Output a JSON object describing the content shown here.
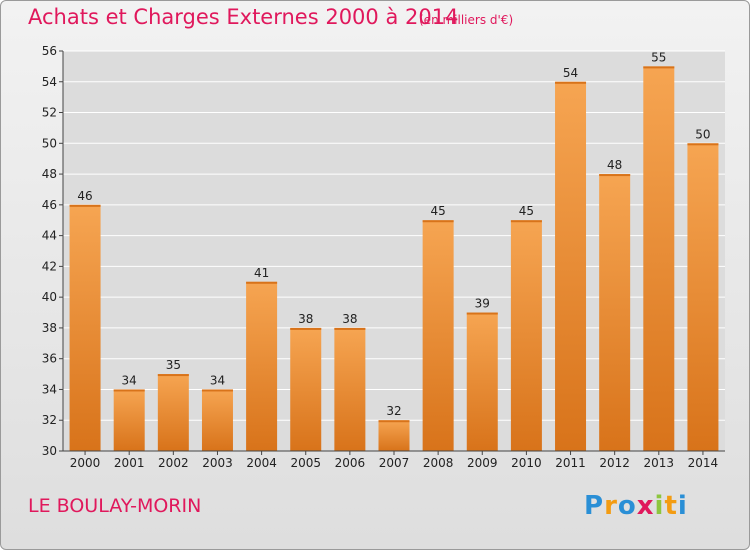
{
  "chart_data": {
    "type": "bar",
    "title": "Achats et Charges Externes 2000 à 2014",
    "subtitle": "(en milliers d'€)",
    "categories": [
      "2000",
      "2001",
      "2002",
      "2003",
      "2004",
      "2005",
      "2006",
      "2007",
      "2008",
      "2009",
      "2010",
      "2011",
      "2012",
      "2013",
      "2014"
    ],
    "values": [
      46,
      34,
      35,
      34,
      41,
      38,
      38,
      32,
      45,
      39,
      45,
      54,
      48,
      55,
      50
    ],
    "ylim": [
      30,
      56
    ],
    "yticks": [
      30,
      32,
      34,
      36,
      38,
      40,
      42,
      44,
      46,
      48,
      50,
      52,
      54,
      56
    ],
    "grid": true,
    "xlabel": "",
    "ylabel": ""
  },
  "location": "LE BOULAY-MORIN",
  "brand": {
    "letters": [
      "P",
      "r",
      "o",
      "x",
      "i",
      "t",
      "i"
    ],
    "colors": [
      "#2a8fd6",
      "#f39c12",
      "#2a8fd6",
      "#e0185c",
      "#8dc63f",
      "#f39c12",
      "#2a8fd6"
    ]
  },
  "colors": {
    "bar_top": "#f6a552",
    "bar_bottom": "#d8731a",
    "accent": "#e0185c"
  }
}
